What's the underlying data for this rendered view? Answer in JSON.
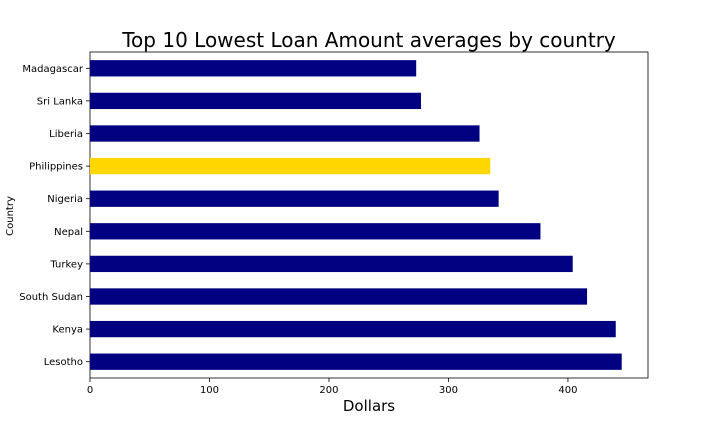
{
  "chart_data": {
    "type": "bar",
    "orientation": "horizontal",
    "title": "Top 10 Lowest Loan Amount averages by country",
    "xlabel": "Dollars",
    "ylabel": "Country",
    "categories": [
      "Madagascar",
      "Sri Lanka",
      "Liberia",
      "Philippines",
      "Nigeria",
      "Nepal",
      "Turkey",
      "South Sudan",
      "Kenya",
      "Lesotho"
    ],
    "values": [
      273,
      277,
      326,
      335,
      342,
      377,
      404,
      416,
      440,
      445
    ],
    "xlim": [
      0,
      467
    ],
    "xticks": [
      0,
      100,
      200,
      300,
      400
    ],
    "grid": false,
    "colors": {
      "default": "#000080",
      "highlight": "#FFD700",
      "highlight_category": "Philippines"
    }
  }
}
